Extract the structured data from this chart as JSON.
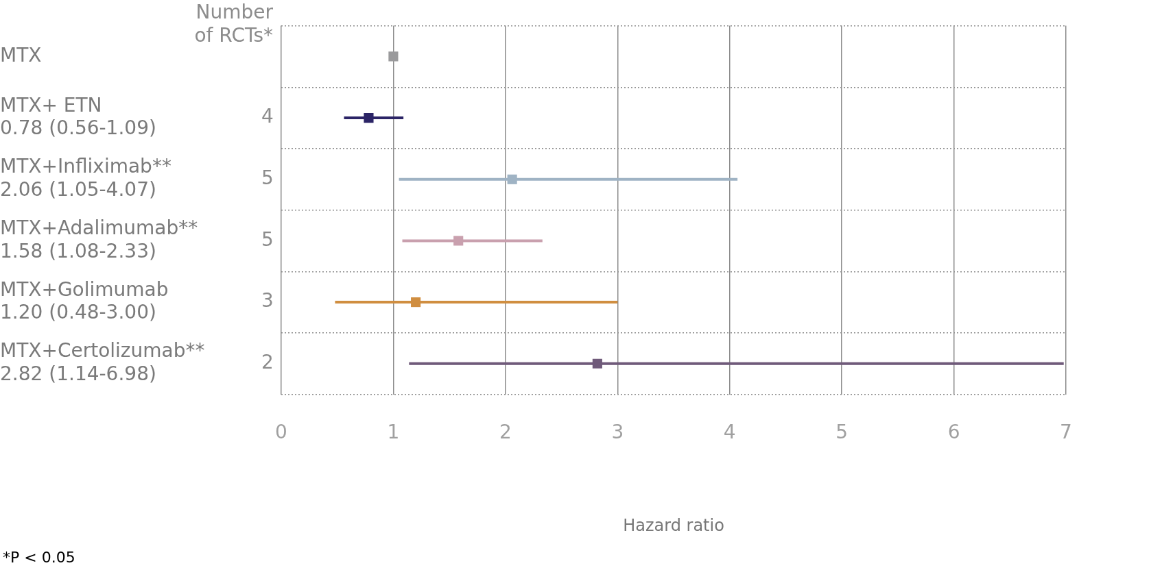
{
  "chart_data": {
    "type": "scatter",
    "orientation": "horizontal",
    "categories": [
      "MTX",
      "MTX+ ETN\n0.78 (0.56-1.09)",
      "MTX+Infliximab**\n2.06 (1.05-4.07)",
      "MTX+Adalimumab**\n1.58 (1.08-2.33)",
      "MTX+Golimumab\n1.20 (0.48-3.00)",
      "MTX+Certolizumab**\n2.82 (1.14-6.98)"
    ],
    "values": [
      1,
      0.78,
      2.06,
      1.58,
      1.2,
      2.82
    ],
    "errors": [
      null,
      [
        0.56,
        1.09
      ],
      [
        1.05,
        4.07
      ],
      [
        1.08,
        2.33
      ],
      [
        0.48,
        3.0
      ],
      [
        1.14,
        6.98
      ]
    ],
    "colors": [
      "#9a9a9c",
      "#2b2466",
      "#9fb3c4",
      "#c9a0ae",
      "#d08e40",
      "#6f5a7a"
    ],
    "xlim": [
      0,
      7
    ],
    "xticks": [
      0,
      1,
      2,
      3,
      4,
      5,
      6,
      7
    ],
    "xlabel": "Hazard ratio",
    "grid": true,
    "legend": false,
    "marker": "square",
    "annotations": [
      "Number\nof RCTs*",
      "4",
      "5",
      "5",
      "3",
      "2",
      "*P < 0.05"
    ]
  }
}
